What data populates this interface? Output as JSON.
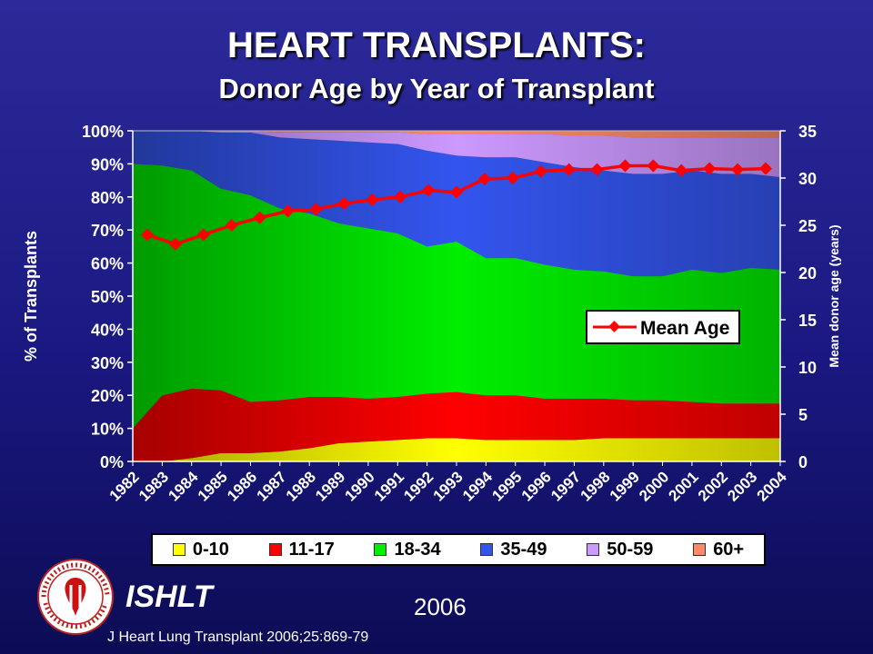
{
  "title": "HEART TRANSPLANTS:",
  "subtitle": "Donor Age by Year of Transplant",
  "footer": {
    "org": "ISHLT",
    "year": "2006",
    "citation": "J Heart Lung Transplant 2006;25:869-79"
  },
  "colors": {
    "0-10": "#ffff00",
    "11-17": "#ff0000",
    "18-34": "#00ee00",
    "35-49": "#3355ee",
    "50-59": "#cc99ff",
    "60+": "#ff8866",
    "mean": "#ff0000"
  },
  "chart_data": {
    "type": "area",
    "x": [
      "1982",
      "1983",
      "1984",
      "1985",
      "1986",
      "1987",
      "1988",
      "1989",
      "1990",
      "1991",
      "1992",
      "1993",
      "1994",
      "1995",
      "1996",
      "1997",
      "1998",
      "1999",
      "2000",
      "2001",
      "2002",
      "2003",
      "2004"
    ],
    "xlabel": "",
    "ylabel": "% of Transplants",
    "ylim": [
      0,
      100
    ],
    "y_ticks": [
      "0%",
      "10%",
      "20%",
      "30%",
      "40%",
      "50%",
      "60%",
      "70%",
      "80%",
      "90%",
      "100%"
    ],
    "y2label": "Mean donor age (years)",
    "y2lim": [
      0,
      35
    ],
    "y2_ticks": [
      "0",
      "5",
      "10",
      "15",
      "20",
      "25",
      "30",
      "35"
    ],
    "stacked_percent": true,
    "series": [
      {
        "name": "0-10",
        "values": [
          0,
          0,
          1,
          2.5,
          2.5,
          3,
          4,
          5.5,
          6,
          6.5,
          7,
          7,
          6.5,
          6.5,
          6.5,
          6.5,
          7,
          7,
          7,
          7,
          7,
          7,
          7
        ]
      },
      {
        "name": "11-17",
        "values": [
          10,
          20,
          21,
          19,
          15.5,
          15.5,
          15.5,
          14,
          13,
          13,
          13.5,
          14,
          13.5,
          13.5,
          12.5,
          12.5,
          12,
          11.5,
          11.5,
          11,
          10.5,
          10.5,
          10.5
        ]
      },
      {
        "name": "18-34",
        "values": [
          80,
          69.5,
          66,
          61,
          62.5,
          58,
          55.5,
          52.5,
          51.5,
          49.5,
          44.5,
          45.5,
          41.5,
          41.5,
          40.5,
          39,
          38.5,
          37.5,
          37.5,
          40,
          39.5,
          41,
          40.5
        ]
      },
      {
        "name": "35-49",
        "values": [
          10,
          10.5,
          12,
          17,
          19,
          21.5,
          22.5,
          25,
          26,
          27,
          29,
          26,
          30.5,
          30.5,
          31,
          31,
          30.5,
          31,
          31,
          30,
          30,
          28.5,
          28
        ]
      },
      {
        "name": "50-59",
        "values": [
          0,
          0,
          0,
          0.5,
          0.5,
          1.5,
          2,
          2.5,
          3,
          3.5,
          5,
          6.5,
          7,
          7,
          8.5,
          9.5,
          10.5,
          11,
          11,
          10,
          11,
          11,
          12
        ]
      },
      {
        "name": "60+",
        "values": [
          0,
          0,
          0,
          0,
          0,
          0.5,
          0.5,
          0.5,
          0.5,
          0.5,
          1,
          1,
          1,
          1,
          1,
          1.5,
          1.5,
          2,
          2,
          2,
          2,
          2,
          2
        ]
      }
    ],
    "line_series": {
      "name": "Mean Age",
      "axis": "right",
      "values": [
        24,
        23,
        24,
        25,
        25.8,
        26.5,
        26.7,
        27.3,
        27.7,
        28,
        28.7,
        28.5,
        29.9,
        30,
        30.7,
        30.9,
        30.9,
        31.3,
        31.3,
        30.8,
        31,
        30.9,
        31
      ]
    },
    "legend_top": [
      "Mean Age"
    ],
    "legend_bottom": [
      "0-10",
      "11-17",
      "18-34",
      "35-49",
      "50-59",
      "60+"
    ],
    "grid": false
  }
}
